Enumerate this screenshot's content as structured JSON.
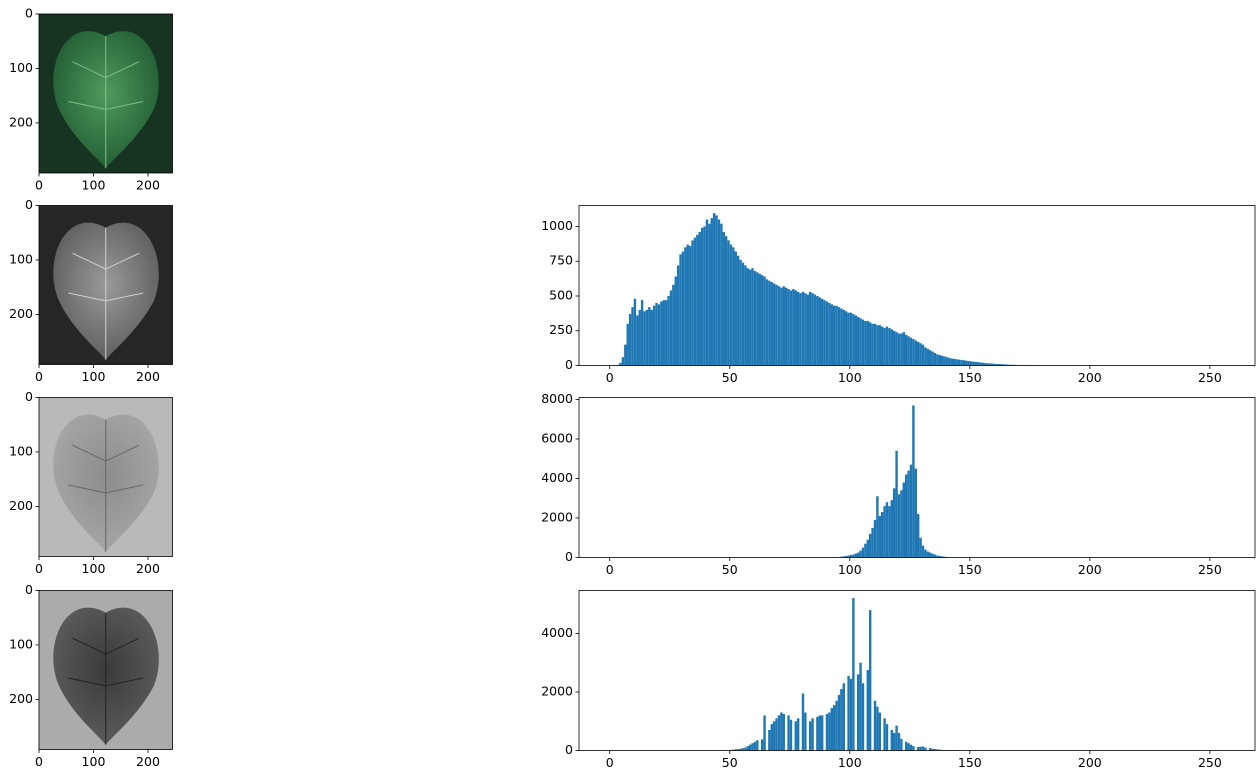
{
  "chart_data": [
    {
      "type": "image",
      "xlim": [
        0,
        245
      ],
      "ylim": [
        292,
        0
      ],
      "xticks": [
        0,
        100,
        200
      ],
      "yticks": [
        0,
        100,
        200
      ]
    },
    {
      "type": "image",
      "xlim": [
        0,
        245
      ],
      "ylim": [
        292,
        0
      ],
      "xticks": [
        0,
        100,
        200
      ],
      "yticks": [
        0,
        100,
        200
      ]
    },
    {
      "type": "image",
      "xlim": [
        0,
        245
      ],
      "ylim": [
        292,
        0
      ],
      "xticks": [
        0,
        100,
        200
      ],
      "yticks": [
        0,
        100,
        200
      ]
    },
    {
      "type": "image",
      "xlim": [
        0,
        245
      ],
      "ylim": [
        292,
        0
      ],
      "xticks": [
        0,
        100,
        200
      ],
      "yticks": [
        0,
        100,
        200
      ]
    },
    {
      "type": "histogram",
      "color": "#1f77b4",
      "xlim": [
        -12.8,
        268.8
      ],
      "ylim": [
        0,
        1151
      ],
      "xticks": [
        0,
        50,
        100,
        150,
        200,
        250
      ],
      "yticks": [
        0,
        250,
        500,
        750,
        1000
      ],
      "bins": [
        0,
        1,
        2,
        3,
        4,
        5,
        6,
        7,
        8,
        9,
        10,
        11,
        12,
        13,
        14,
        15,
        16,
        17,
        18,
        19,
        20,
        21,
        22,
        23,
        24,
        25,
        26,
        27,
        28,
        29,
        30,
        31,
        32,
        33,
        34,
        35,
        36,
        37,
        38,
        39,
        40,
        41,
        42,
        43,
        44,
        45,
        46,
        47,
        48,
        49,
        50,
        51,
        52,
        53,
        54,
        55,
        56,
        57,
        58,
        59,
        60,
        61,
        62,
        63,
        64,
        65,
        66,
        67,
        68,
        69,
        70,
        71,
        72,
        73,
        74,
        75,
        76,
        77,
        78,
        79,
        80,
        81,
        82,
        83,
        84,
        85,
        86,
        87,
        88,
        89,
        90,
        91,
        92,
        93,
        94,
        95,
        96,
        97,
        98,
        99,
        100,
        101,
        102,
        103,
        104,
        105,
        106,
        107,
        108,
        109,
        110,
        111,
        112,
        113,
        114,
        115,
        116,
        117,
        118,
        119,
        120,
        121,
        122,
        123,
        124,
        125,
        126,
        127,
        128,
        129,
        130,
        131,
        132,
        133,
        134,
        135,
        136,
        137,
        138,
        139,
        140,
        141,
        142,
        143,
        144,
        145,
        146,
        147,
        148,
        149,
        150,
        151,
        152,
        153,
        154,
        155,
        156,
        157,
        158,
        159,
        160,
        161,
        162,
        163,
        164,
        165,
        166,
        167,
        168,
        169,
        170,
        171,
        172,
        173,
        174,
        175,
        176,
        177,
        178,
        179,
        180,
        181
      ],
      "values": [
        0,
        0,
        0,
        5,
        20,
        60,
        150,
        300,
        370,
        420,
        480,
        360,
        400,
        470,
        390,
        400,
        420,
        400,
        430,
        450,
        440,
        460,
        470,
        470,
        500,
        540,
        580,
        640,
        720,
        800,
        820,
        850,
        870,
        860,
        900,
        920,
        940,
        960,
        990,
        1000,
        1050,
        1020,
        1060,
        1096,
        1080,
        1050,
        1020,
        960,
        930,
        900,
        870,
        850,
        820,
        790,
        760,
        740,
        720,
        700,
        690,
        700,
        680,
        670,
        660,
        650,
        640,
        620,
        610,
        600,
        590,
        580,
        570,
        560,
        570,
        560,
        550,
        540,
        550,
        540,
        530,
        520,
        530,
        520,
        510,
        530,
        520,
        510,
        500,
        490,
        480,
        470,
        460,
        450,
        440,
        430,
        430,
        420,
        410,
        400,
        390,
        380,
        380,
        370,
        360,
        350,
        340,
        330,
        320,
        320,
        310,
        300,
        300,
        290,
        290,
        280,
        270,
        280,
        270,
        260,
        250,
        240,
        230,
        230,
        240,
        220,
        210,
        200,
        190,
        180,
        170,
        160,
        150,
        130,
        120,
        110,
        100,
        90,
        80,
        75,
        70,
        65,
        60,
        55,
        50,
        48,
        45,
        42,
        40,
        38,
        35,
        32,
        30,
        28,
        26,
        24,
        22,
        20,
        18,
        16,
        15,
        14,
        12,
        11,
        10,
        9,
        8,
        7,
        6,
        5,
        5,
        4,
        4,
        3,
        3,
        2,
        2,
        2,
        2,
        1,
        1,
        1,
        1
      ]
    },
    {
      "type": "histogram",
      "color": "#1f77b4",
      "xlim": [
        -12.8,
        268.8
      ],
      "ylim": [
        0,
        8100
      ],
      "xticks": [
        0,
        50,
        100,
        150,
        200,
        250
      ],
      "yticks": [
        0,
        2000,
        4000,
        6000,
        8000
      ],
      "bins": [
        95,
        96,
        97,
        98,
        99,
        100,
        101,
        102,
        103,
        104,
        105,
        106,
        107,
        108,
        109,
        110,
        111,
        112,
        113,
        114,
        115,
        116,
        117,
        118,
        119,
        120,
        121,
        122,
        123,
        124,
        125,
        126,
        127,
        128,
        129,
        130,
        131,
        132,
        133,
        134,
        135,
        136,
        137,
        138,
        139,
        140,
        141
      ],
      "values": [
        20,
        40,
        60,
        80,
        100,
        130,
        150,
        200,
        250,
        350,
        500,
        700,
        900,
        1200,
        1500,
        1900,
        3100,
        2100,
        2300,
        2600,
        2800,
        2600,
        2900,
        3500,
        5400,
        3200,
        3400,
        3800,
        4200,
        4400,
        4700,
        7700,
        4500,
        2200,
        1000,
        600,
        400,
        300,
        250,
        200,
        150,
        100,
        80,
        60,
        40,
        20
      ]
    },
    {
      "type": "histogram",
      "color": "#1f77b4",
      "xlim": [
        -12.8,
        268.8
      ],
      "ylim": [
        0,
        5470
      ],
      "xticks": [
        0,
        50,
        100,
        150,
        200,
        250
      ],
      "yticks": [
        0,
        2000,
        4000
      ],
      "bins": [
        50,
        51,
        52,
        53,
        54,
        55,
        56,
        57,
        58,
        59,
        60,
        61,
        62,
        63,
        64,
        65,
        66,
        67,
        68,
        69,
        70,
        71,
        72,
        73,
        74,
        75,
        76,
        77,
        78,
        79,
        80,
        81,
        82,
        83,
        84,
        85,
        86,
        87,
        88,
        89,
        90,
        91,
        92,
        93,
        94,
        95,
        96,
        97,
        98,
        99,
        100,
        101,
        102,
        103,
        104,
        105,
        106,
        107,
        108,
        109,
        110,
        111,
        112,
        113,
        114,
        115,
        116,
        117,
        118,
        119,
        120,
        121,
        122,
        123,
        124,
        125,
        126,
        127,
        128,
        129,
        130,
        131,
        132,
        133,
        134,
        135,
        136,
        137,
        138,
        139,
        140,
        141,
        142,
        143,
        144,
        145,
        146,
        147,
        148,
        149,
        150,
        151,
        152,
        153,
        154,
        155,
        156
      ],
      "values": [
        20,
        30,
        40,
        50,
        60,
        80,
        100,
        150,
        200,
        250,
        300,
        350,
        0,
        380,
        1200,
        0,
        700,
        900,
        1000,
        1100,
        1200,
        1300,
        1250,
        0,
        1200,
        1050,
        0,
        1000,
        1100,
        0,
        1950,
        1300,
        0,
        1000,
        1100,
        0,
        1150,
        1200,
        1200,
        0,
        1250,
        1300,
        1450,
        1550,
        1700,
        1900,
        2100,
        2300,
        0,
        2550,
        2450,
        5210,
        0,
        2600,
        3000,
        2300,
        0,
        2750,
        4800,
        0,
        1700,
        1500,
        1300,
        0,
        1100,
        900,
        0,
        700,
        600,
        850,
        600,
        400,
        0,
        300,
        250,
        200,
        150,
        0,
        120,
        130,
        140,
        100,
        0,
        80,
        60,
        50,
        40,
        30,
        20,
        0,
        15,
        10,
        8,
        6,
        5,
        4,
        3,
        2,
        2,
        1,
        1,
        1,
        1,
        1,
        1,
        1
      ]
    }
  ]
}
